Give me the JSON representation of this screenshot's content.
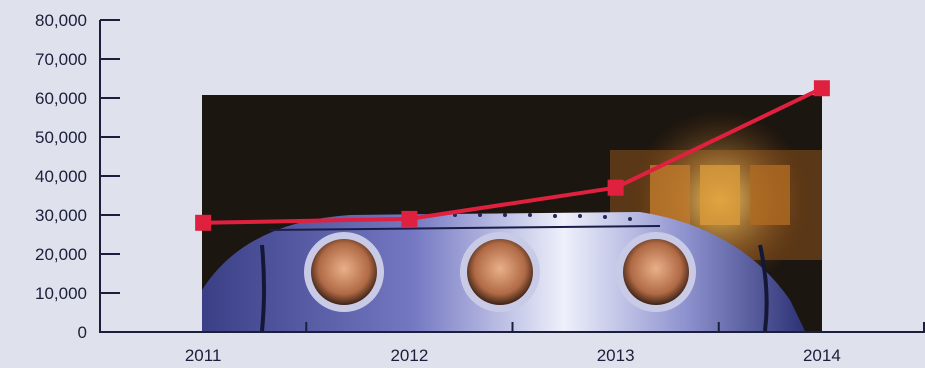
{
  "chart_data": {
    "type": "line",
    "categories": [
      "2011",
      "2012",
      "2013",
      "2014"
    ],
    "series": [
      {
        "values": [
          28000,
          29000,
          37000,
          62500
        ],
        "color": "#e0203f"
      }
    ],
    "ylim": [
      0,
      80000
    ],
    "yticks": [
      "0",
      "10,000",
      "20,000",
      "30,000",
      "40,000",
      "50,000",
      "60,000",
      "70,000",
      "80,000"
    ],
    "xlabel": "",
    "ylabel": "",
    "title": "",
    "grid": false,
    "background_image": "photo of three smiling faces peering out of the portholes of a spaceship mock-up"
  },
  "colors": {
    "background": "#dfe2ec",
    "axis": "#1b1f3b",
    "line": "#e0203f"
  }
}
